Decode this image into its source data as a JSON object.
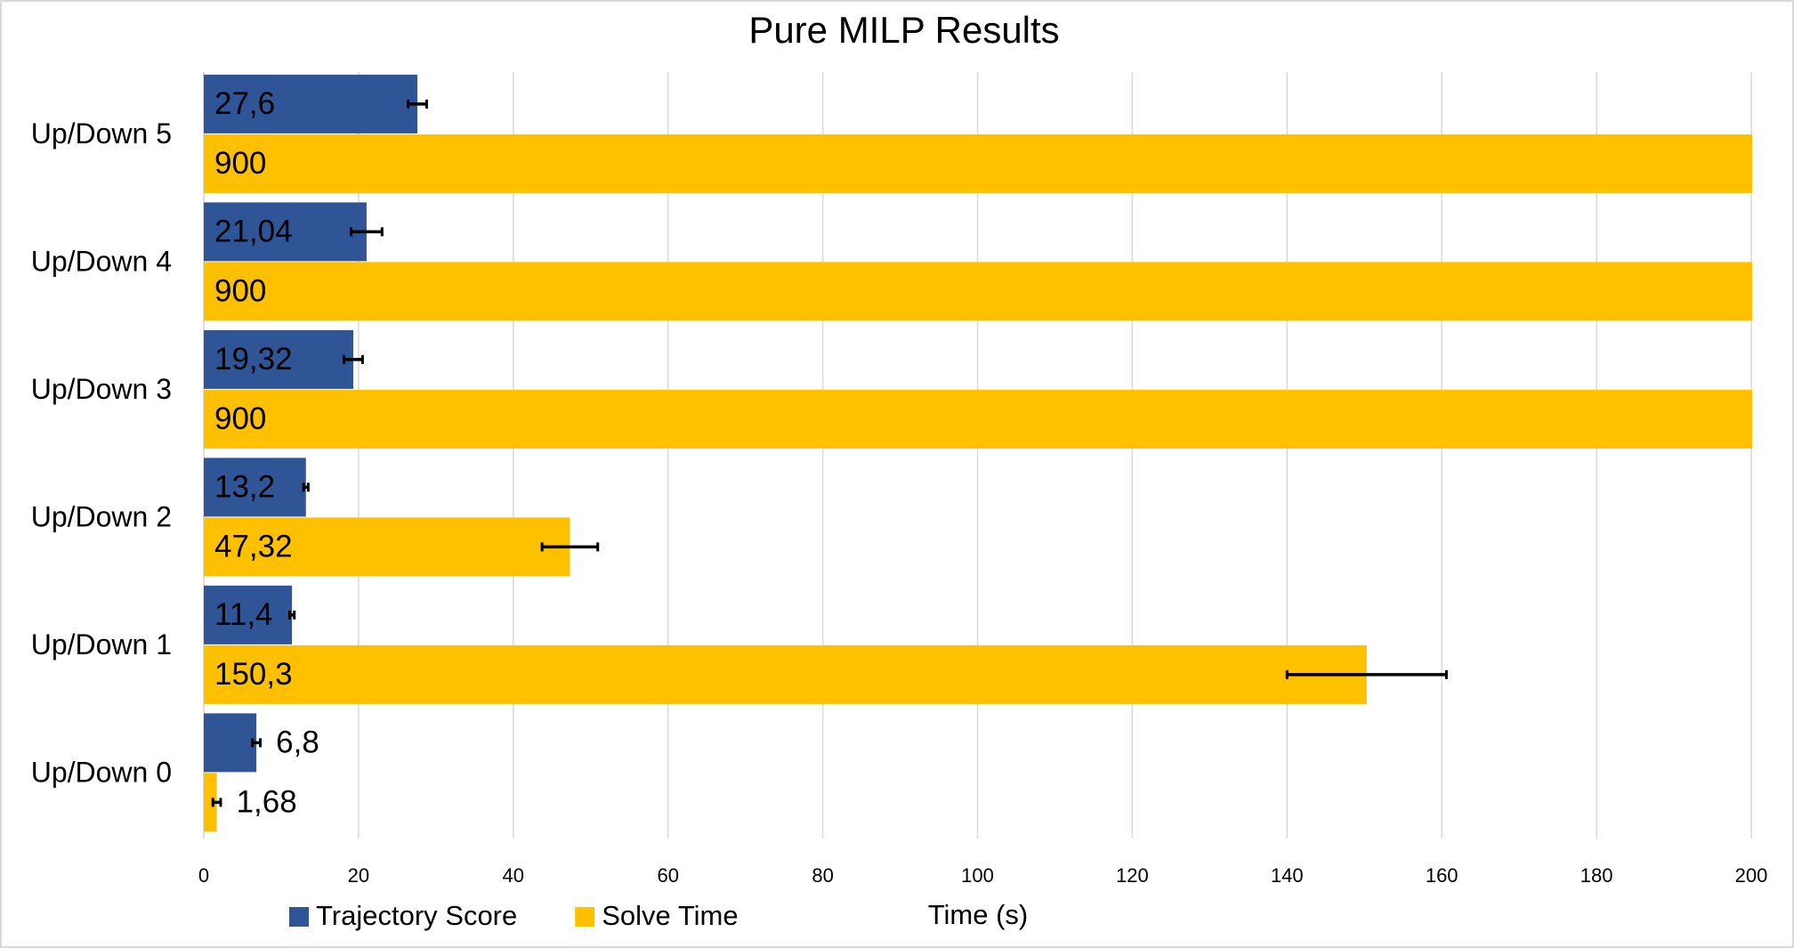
{
  "chart_data": {
    "type": "hbar",
    "title": "Pure MILP Results",
    "x_label": "Time (s)",
    "categories": [
      "Up/Down 0",
      "Up/Down 1",
      "Up/Down 2",
      "Up/Down 3",
      "Up/Down 4",
      "Up/Down 5"
    ],
    "series": [
      {
        "name": "Trajectory Score",
        "color": "#2f5597",
        "values": [
          6.8,
          11.4,
          13.2,
          19.32,
          21.04,
          27.6
        ],
        "value_labels": [
          "6,8",
          "11,4",
          "13,2",
          "19,32",
          "21,04",
          "27,6"
        ],
        "errors": [
          0.5,
          0.3,
          0.3,
          1.2,
          2,
          1.2
        ]
      },
      {
        "name": "Solve Time",
        "color": "#ffc000",
        "values": [
          1.68,
          150.3,
          47.32,
          900,
          900,
          900
        ],
        "value_labels": [
          "1,68",
          "150,3",
          "47,32",
          "900",
          "900",
          "900"
        ],
        "errors": [
          0.5,
          10.3,
          3.6,
          null,
          null,
          null
        ]
      }
    ],
    "xlim": [
      0,
      200
    ],
    "xticks": [
      0,
      20,
      40,
      60,
      80,
      100,
      120,
      140,
      160,
      180,
      200
    ],
    "grid": true
  }
}
